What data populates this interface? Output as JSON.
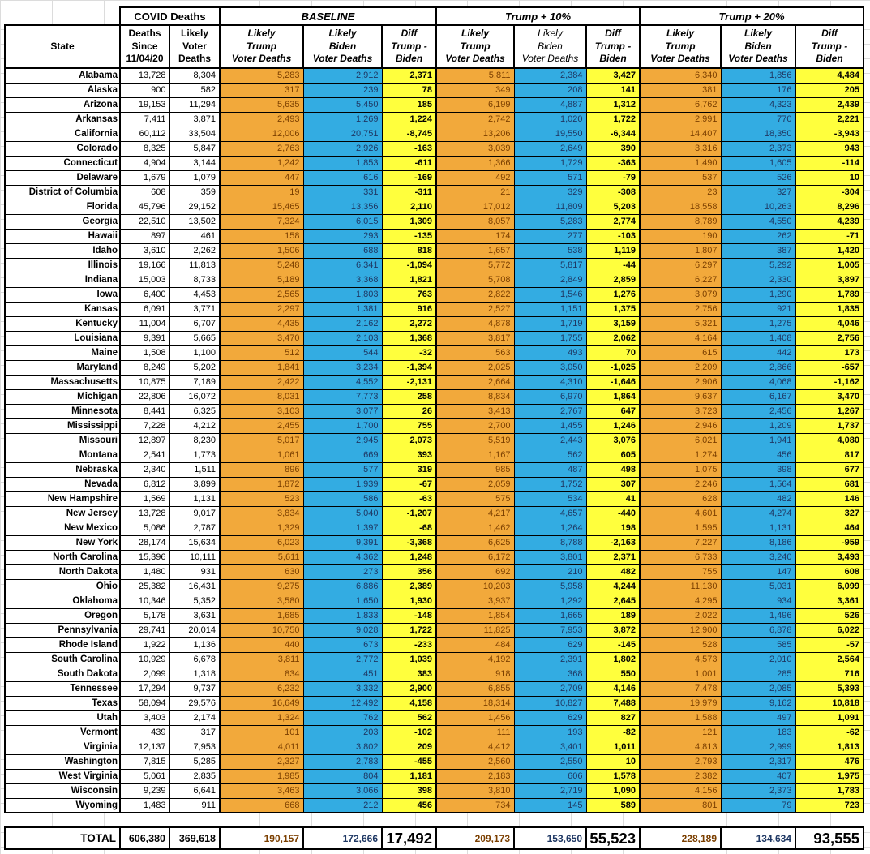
{
  "colors": {
    "orange": "#F2A93B",
    "blue": "#33ACE2",
    "yellow": "#FFFF3D",
    "orange-text": "#7B3F00",
    "orange-header-text": "#4A2B00",
    "blue-text": "#1F3864"
  },
  "group_headers": {
    "covid": "COVID Deaths",
    "baseline": "BASELINE",
    "trump10": "Trump + 10%",
    "trump20": "Trump + 20%"
  },
  "column_headers": {
    "state": "State",
    "deaths_since": "Deaths\nSince\n11/04/20",
    "likely_voter": "Likely\nVoter\nDeaths",
    "trump": "Likely\nTrump\nVoter Deaths",
    "biden": "Likely\nBiden\nVoter Deaths",
    "diff": "Diff\nTrump -\nBiden"
  },
  "rows": [
    [
      "Alabama",
      "13,728",
      "8,304",
      "5,283",
      "2,912",
      "2,371",
      "5,811",
      "2,384",
      "3,427",
      "6,340",
      "1,856",
      "4,484"
    ],
    [
      "Alaska",
      "900",
      "582",
      "317",
      "239",
      "78",
      "349",
      "208",
      "141",
      "381",
      "176",
      "205"
    ],
    [
      "Arizona",
      "19,153",
      "11,294",
      "5,635",
      "5,450",
      "185",
      "6,199",
      "4,887",
      "1,312",
      "6,762",
      "4,323",
      "2,439"
    ],
    [
      "Arkansas",
      "7,411",
      "3,871",
      "2,493",
      "1,269",
      "1,224",
      "2,742",
      "1,020",
      "1,722",
      "2,991",
      "770",
      "2,221"
    ],
    [
      "California",
      "60,112",
      "33,504",
      "12,006",
      "20,751",
      "-8,745",
      "13,206",
      "19,550",
      "-6,344",
      "14,407",
      "18,350",
      "-3,943"
    ],
    [
      "Colorado",
      "8,325",
      "5,847",
      "2,763",
      "2,926",
      "-163",
      "3,039",
      "2,649",
      "390",
      "3,316",
      "2,373",
      "943"
    ],
    [
      "Connecticut",
      "4,904",
      "3,144",
      "1,242",
      "1,853",
      "-611",
      "1,366",
      "1,729",
      "-363",
      "1,490",
      "1,605",
      "-114"
    ],
    [
      "Delaware",
      "1,679",
      "1,079",
      "447",
      "616",
      "-169",
      "492",
      "571",
      "-79",
      "537",
      "526",
      "10"
    ],
    [
      "District of Columbia",
      "608",
      "359",
      "19",
      "331",
      "-311",
      "21",
      "329",
      "-308",
      "23",
      "327",
      "-304"
    ],
    [
      "Florida",
      "45,796",
      "29,152",
      "15,465",
      "13,356",
      "2,110",
      "17,012",
      "11,809",
      "5,203",
      "18,558",
      "10,263",
      "8,296"
    ],
    [
      "Georgia",
      "22,510",
      "13,502",
      "7,324",
      "6,015",
      "1,309",
      "8,057",
      "5,283",
      "2,774",
      "8,789",
      "4,550",
      "4,239"
    ],
    [
      "Hawaii",
      "897",
      "461",
      "158",
      "293",
      "-135",
      "174",
      "277",
      "-103",
      "190",
      "262",
      "-71"
    ],
    [
      "Idaho",
      "3,610",
      "2,262",
      "1,506",
      "688",
      "818",
      "1,657",
      "538",
      "1,119",
      "1,807",
      "387",
      "1,420"
    ],
    [
      "Illinois",
      "19,166",
      "11,813",
      "5,248",
      "6,341",
      "-1,094",
      "5,772",
      "5,817",
      "-44",
      "6,297",
      "5,292",
      "1,005"
    ],
    [
      "Indiana",
      "15,003",
      "8,733",
      "5,189",
      "3,368",
      "1,821",
      "5,708",
      "2,849",
      "2,859",
      "6,227",
      "2,330",
      "3,897"
    ],
    [
      "Iowa",
      "6,400",
      "4,453",
      "2,565",
      "1,803",
      "763",
      "2,822",
      "1,546",
      "1,276",
      "3,079",
      "1,290",
      "1,789"
    ],
    [
      "Kansas",
      "6,091",
      "3,771",
      "2,297",
      "1,381",
      "916",
      "2,527",
      "1,151",
      "1,375",
      "2,756",
      "921",
      "1,835"
    ],
    [
      "Kentucky",
      "11,004",
      "6,707",
      "4,435",
      "2,162",
      "2,272",
      "4,878",
      "1,719",
      "3,159",
      "5,321",
      "1,275",
      "4,046"
    ],
    [
      "Louisiana",
      "9,391",
      "5,665",
      "3,470",
      "2,103",
      "1,368",
      "3,817",
      "1,755",
      "2,062",
      "4,164",
      "1,408",
      "2,756"
    ],
    [
      "Maine",
      "1,508",
      "1,100",
      "512",
      "544",
      "-32",
      "563",
      "493",
      "70",
      "615",
      "442",
      "173"
    ],
    [
      "Maryland",
      "8,249",
      "5,202",
      "1,841",
      "3,234",
      "-1,394",
      "2,025",
      "3,050",
      "-1,025",
      "2,209",
      "2,866",
      "-657"
    ],
    [
      "Massachusetts",
      "10,875",
      "7,189",
      "2,422",
      "4,552",
      "-2,131",
      "2,664",
      "4,310",
      "-1,646",
      "2,906",
      "4,068",
      "-1,162"
    ],
    [
      "Michigan",
      "22,806",
      "16,072",
      "8,031",
      "7,773",
      "258",
      "8,834",
      "6,970",
      "1,864",
      "9,637",
      "6,167",
      "3,470"
    ],
    [
      "Minnesota",
      "8,441",
      "6,325",
      "3,103",
      "3,077",
      "26",
      "3,413",
      "2,767",
      "647",
      "3,723",
      "2,456",
      "1,267"
    ],
    [
      "Mississippi",
      "7,228",
      "4,212",
      "2,455",
      "1,700",
      "755",
      "2,700",
      "1,455",
      "1,246",
      "2,946",
      "1,209",
      "1,737"
    ],
    [
      "Missouri",
      "12,897",
      "8,230",
      "5,017",
      "2,945",
      "2,073",
      "5,519",
      "2,443",
      "3,076",
      "6,021",
      "1,941",
      "4,080"
    ],
    [
      "Montana",
      "2,541",
      "1,773",
      "1,061",
      "669",
      "393",
      "1,167",
      "562",
      "605",
      "1,274",
      "456",
      "817"
    ],
    [
      "Nebraska",
      "2,340",
      "1,511",
      "896",
      "577",
      "319",
      "985",
      "487",
      "498",
      "1,075",
      "398",
      "677"
    ],
    [
      "Nevada",
      "6,812",
      "3,899",
      "1,872",
      "1,939",
      "-67",
      "2,059",
      "1,752",
      "307",
      "2,246",
      "1,564",
      "681"
    ],
    [
      "New Hampshire",
      "1,569",
      "1,131",
      "523",
      "586",
      "-63",
      "575",
      "534",
      "41",
      "628",
      "482",
      "146"
    ],
    [
      "New Jersey",
      "13,728",
      "9,017",
      "3,834",
      "5,040",
      "-1,207",
      "4,217",
      "4,657",
      "-440",
      "4,601",
      "4,274",
      "327"
    ],
    [
      "New Mexico",
      "5,086",
      "2,787",
      "1,329",
      "1,397",
      "-68",
      "1,462",
      "1,264",
      "198",
      "1,595",
      "1,131",
      "464"
    ],
    [
      "New York",
      "28,174",
      "15,634",
      "6,023",
      "9,391",
      "-3,368",
      "6,625",
      "8,788",
      "-2,163",
      "7,227",
      "8,186",
      "-959"
    ],
    [
      "North Carolina",
      "15,396",
      "10,111",
      "5,611",
      "4,362",
      "1,248",
      "6,172",
      "3,801",
      "2,371",
      "6,733",
      "3,240",
      "3,493"
    ],
    [
      "North Dakota",
      "1,480",
      "931",
      "630",
      "273",
      "356",
      "692",
      "210",
      "482",
      "755",
      "147",
      "608"
    ],
    [
      "Ohio",
      "25,382",
      "16,431",
      "9,275",
      "6,886",
      "2,389",
      "10,203",
      "5,958",
      "4,244",
      "11,130",
      "5,031",
      "6,099"
    ],
    [
      "Oklahoma",
      "10,346",
      "5,352",
      "3,580",
      "1,650",
      "1,930",
      "3,937",
      "1,292",
      "2,645",
      "4,295",
      "934",
      "3,361"
    ],
    [
      "Oregon",
      "5,178",
      "3,631",
      "1,685",
      "1,833",
      "-148",
      "1,854",
      "1,665",
      "189",
      "2,022",
      "1,496",
      "526"
    ],
    [
      "Pennsylvania",
      "29,741",
      "20,014",
      "10,750",
      "9,028",
      "1,722",
      "11,825",
      "7,953",
      "3,872",
      "12,900",
      "6,878",
      "6,022"
    ],
    [
      "Rhode Island",
      "1,922",
      "1,136",
      "440",
      "673",
      "-233",
      "484",
      "629",
      "-145",
      "528",
      "585",
      "-57"
    ],
    [
      "South Carolina",
      "10,929",
      "6,678",
      "3,811",
      "2,772",
      "1,039",
      "4,192",
      "2,391",
      "1,802",
      "4,573",
      "2,010",
      "2,564"
    ],
    [
      "South Dakota",
      "2,099",
      "1,318",
      "834",
      "451",
      "383",
      "918",
      "368",
      "550",
      "1,001",
      "285",
      "716"
    ],
    [
      "Tennessee",
      "17,294",
      "9,737",
      "6,232",
      "3,332",
      "2,900",
      "6,855",
      "2,709",
      "4,146",
      "7,478",
      "2,085",
      "5,393"
    ],
    [
      "Texas",
      "58,094",
      "29,576",
      "16,649",
      "12,492",
      "4,158",
      "18,314",
      "10,827",
      "7,488",
      "19,979",
      "9,162",
      "10,818"
    ],
    [
      "Utah",
      "3,403",
      "2,174",
      "1,324",
      "762",
      "562",
      "1,456",
      "629",
      "827",
      "1,588",
      "497",
      "1,091"
    ],
    [
      "Vermont",
      "439",
      "317",
      "101",
      "203",
      "-102",
      "111",
      "193",
      "-82",
      "121",
      "183",
      "-62"
    ],
    [
      "Virginia",
      "12,137",
      "7,953",
      "4,011",
      "3,802",
      "209",
      "4,412",
      "3,401",
      "1,011",
      "4,813",
      "2,999",
      "1,813"
    ],
    [
      "Washington",
      "7,815",
      "5,285",
      "2,327",
      "2,783",
      "-455",
      "2,560",
      "2,550",
      "10",
      "2,793",
      "2,317",
      "476"
    ],
    [
      "West Virginia",
      "5,061",
      "2,835",
      "1,985",
      "804",
      "1,181",
      "2,183",
      "606",
      "1,578",
      "2,382",
      "407",
      "1,975"
    ],
    [
      "Wisconsin",
      "9,239",
      "6,641",
      "3,463",
      "3,066",
      "398",
      "3,810",
      "2,719",
      "1,090",
      "4,156",
      "2,373",
      "1,783"
    ],
    [
      "Wyoming",
      "1,483",
      "911",
      "668",
      "212",
      "456",
      "734",
      "145",
      "589",
      "801",
      "79",
      "723"
    ]
  ],
  "total": {
    "label": "TOTAL",
    "values": [
      "606,380",
      "369,618",
      "190,157",
      "172,666",
      "17,492",
      "209,173",
      "153,650",
      "55,523",
      "228,189",
      "134,634",
      "93,555"
    ]
  }
}
